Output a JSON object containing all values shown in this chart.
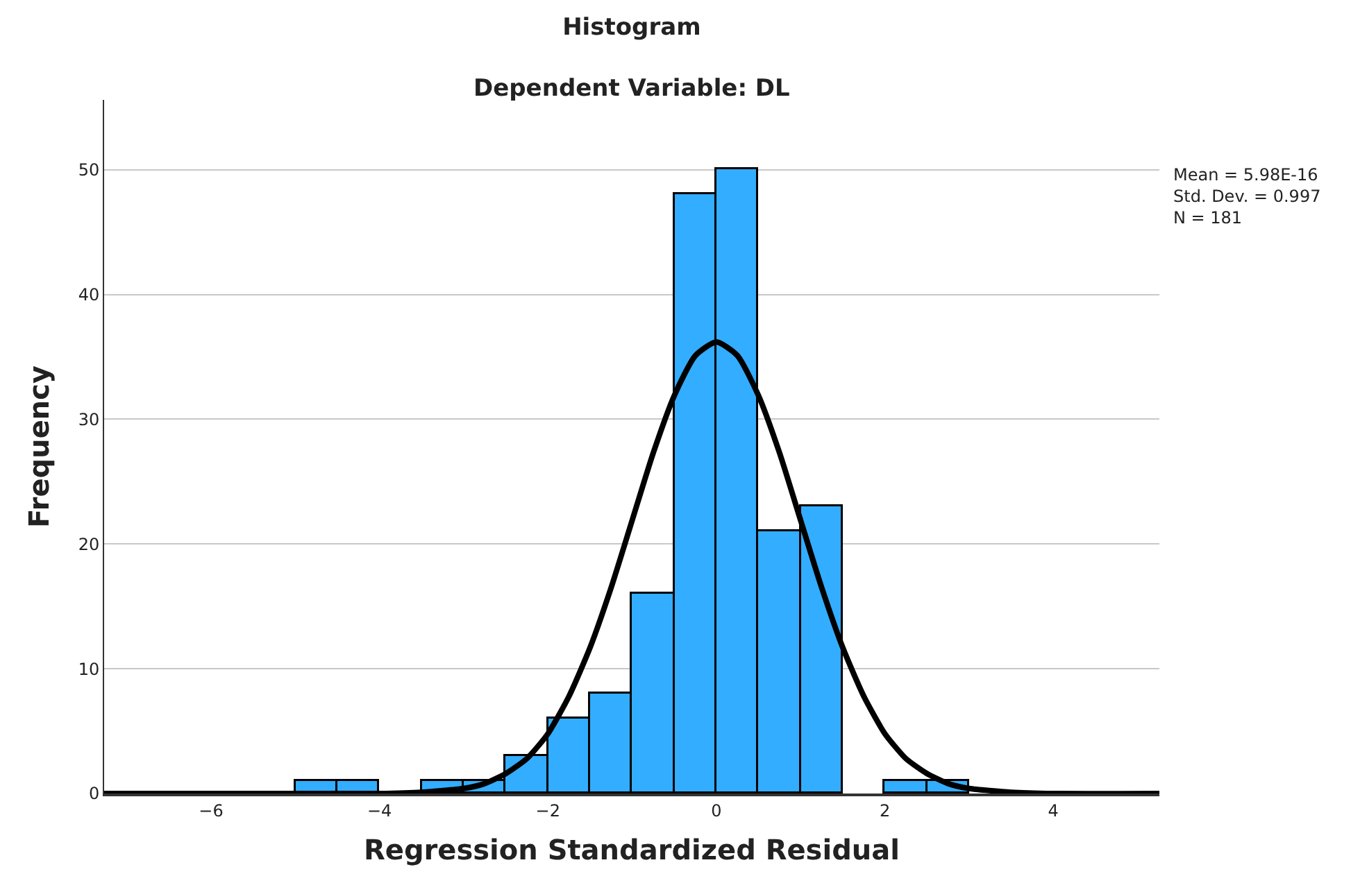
{
  "chart_data": {
    "type": "histogram",
    "title": "Histogram",
    "subtitle": "Dependent Variable: DL",
    "xlabel": "Regression Standardized Residual",
    "ylabel": "Frequency",
    "bins": [
      -5,
      -4.5,
      -4,
      -3.5,
      -3,
      -2.5,
      -2,
      -1.5,
      -1,
      -0.5,
      0,
      0.5,
      1,
      1.5,
      2,
      2.5,
      3
    ],
    "values": [
      1,
      1,
      0,
      1,
      1,
      3,
      6,
      8,
      16,
      48,
      50,
      21,
      23,
      0,
      1,
      1
    ],
    "color": "#33adff",
    "series": [
      {
        "type": "line",
        "color": "#000000",
        "x": [
          -7.27,
          -5,
          -4.5,
          -4,
          -3.5,
          -3,
          -2.75,
          -2.5,
          -2.25,
          -2,
          -1.75,
          -1.5,
          -1.25,
          -1,
          -0.75,
          -0.5,
          -0.25,
          0,
          0.25,
          0.5,
          0.75,
          1,
          1.25,
          1.5,
          1.75,
          2,
          2.25,
          2.5,
          2.75,
          3,
          3.5,
          4,
          5.26
        ],
        "values": [
          0,
          0,
          0,
          0,
          0.1,
          0.4,
          0.8,
          1.6,
          2.8,
          4.8,
          7.8,
          11.7,
          16.5,
          21.9,
          27.3,
          31.9,
          35.1,
          36.2,
          35.1,
          31.9,
          27.3,
          21.9,
          16.5,
          11.7,
          7.8,
          4.8,
          2.8,
          1.6,
          0.8,
          0.4,
          0.1,
          0,
          0
        ]
      }
    ],
    "annotations": [
      "Mean = 5.98E-16\nStd. Dev. = 0.997\nN = 181"
    ],
    "xlim": [
      -7.27,
      5.26
    ],
    "xticks": [
      -6,
      -4,
      -2,
      0,
      2,
      4
    ],
    "ylim": [
      0,
      55.6
    ],
    "yticks": [
      0,
      10,
      20,
      30,
      40,
      50
    ],
    "grid": "y"
  }
}
